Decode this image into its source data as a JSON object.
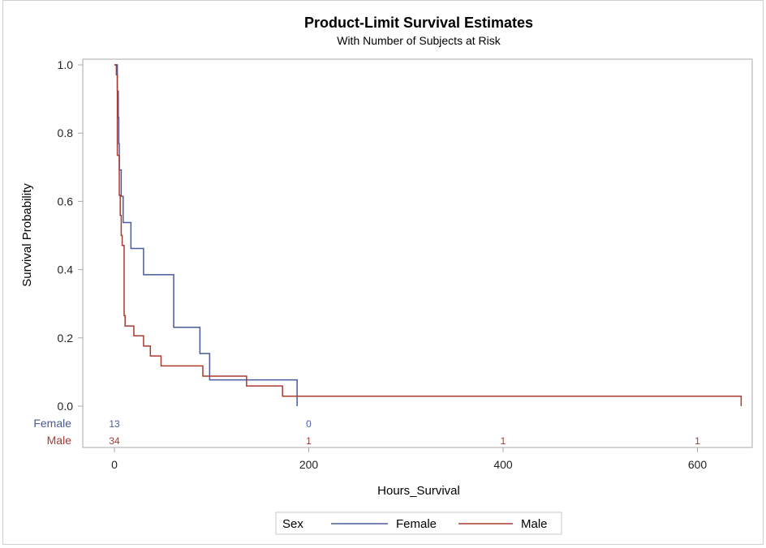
{
  "chart_data": {
    "type": "line",
    "step": true,
    "title": "Product-Limit Survival Estimates",
    "subtitle": "With Number of Subjects at Risk",
    "xlabel": "Hours_Survival",
    "ylabel": "Survival Probability",
    "xlim": [
      -25,
      660
    ],
    "ylim": [
      0,
      1
    ],
    "xticks": [
      0,
      200,
      400,
      600
    ],
    "yticks": [
      "0.0",
      "0.2",
      "0.4",
      "0.6",
      "0.8",
      "1.0"
    ],
    "grid": false,
    "legend": {
      "title": "Sex",
      "position": "bottom"
    },
    "series": [
      {
        "name": "Female",
        "color": "#4a5a9c",
        "points": [
          [
            0,
            1
          ],
          [
            3,
            0.923
          ],
          [
            4,
            0.846
          ],
          [
            4.5,
            0.769
          ],
          [
            5,
            0.692
          ],
          [
            7,
            0.615
          ],
          [
            9,
            0.538
          ],
          [
            17,
            0.462
          ],
          [
            30,
            0.385
          ],
          [
            61,
            0.231
          ],
          [
            88,
            0.154
          ],
          [
            98,
            0.077
          ],
          [
            188,
            0
          ]
        ]
      },
      {
        "name": "Male",
        "color": "#a83a30",
        "points": [
          [
            0,
            1
          ],
          [
            2,
            0.971
          ],
          [
            3,
            0.735
          ],
          [
            5,
            0.618
          ],
          [
            6,
            0.559
          ],
          [
            7,
            0.5
          ],
          [
            8,
            0.471
          ],
          [
            10,
            0.265
          ],
          [
            11,
            0.235
          ],
          [
            20,
            0.206
          ],
          [
            30,
            0.176
          ],
          [
            37,
            0.147
          ],
          [
            48,
            0.118
          ],
          [
            91,
            0.088
          ],
          [
            136,
            0.059
          ],
          [
            173,
            0.029
          ],
          [
            645,
            0
          ]
        ]
      }
    ],
    "at_risk": {
      "times": [
        0,
        200,
        400,
        600
      ],
      "rows": [
        {
          "label": "Female",
          "values": [
            "13",
            "0",
            "",
            ""
          ]
        },
        {
          "label": "Male",
          "values": [
            "34",
            "1",
            "1",
            "1"
          ]
        }
      ]
    }
  }
}
